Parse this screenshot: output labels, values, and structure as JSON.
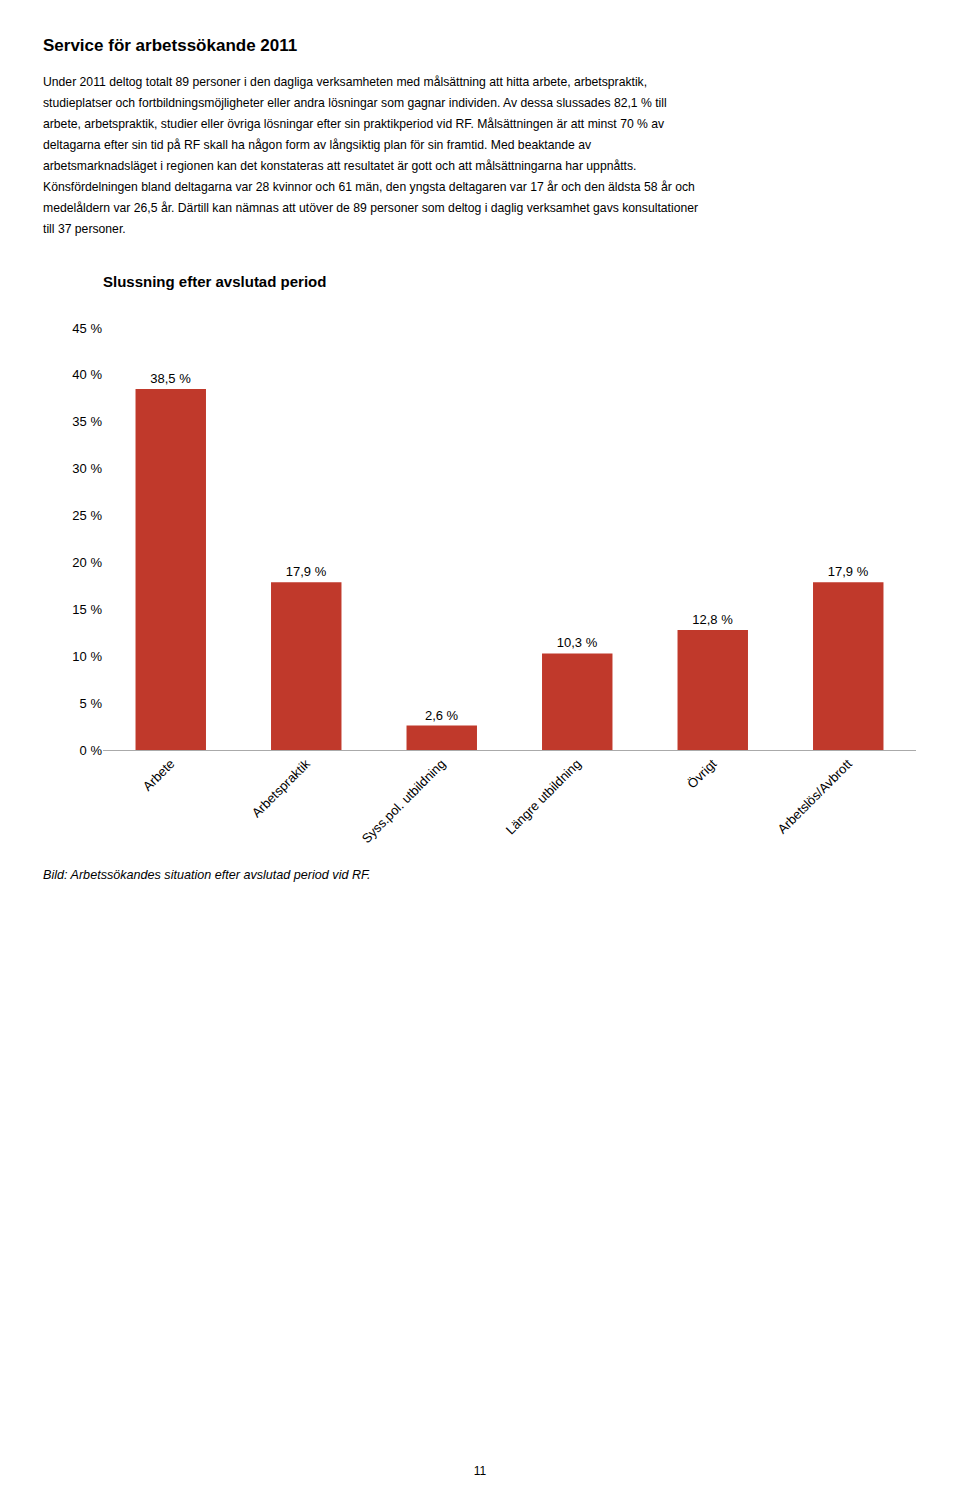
{
  "page_title": "Service för arbetssökande 2011",
  "body_lines": [
    "Under 2011 deltog totalt 89 personer i den dagliga verksamheten med målsättning att hitta arbete, arbetspraktik,",
    "studieplatser och fortbildningsmöjligheter eller andra lösningar som gagnar individen. Av dessa slussades 82,1 % till",
    "arbete, arbetspraktik, studier eller övriga lösningar efter sin praktikperiod vid RF. Målsättningen är att minst 70 % av",
    "deltagarna efter sin tid på RF skall ha någon form av långsiktig plan för sin framtid. Med beaktande av",
    "arbetsmarknadsläget i regionen kan det konstateras att resultatet är gott och att målsättningarna har uppnåtts.",
    "Könsfördelningen bland deltagarna var 28 kvinnor och 61 män, den yngsta deltagaren var 17 år och den äldsta 58 år och",
    "medelåldern var 26,5 år. Därtill kan nämnas att utöver de 89 personer som deltog i daglig verksamhet gavs konsultationer",
    "till 37 personer."
  ],
  "caption": "Bild: Arbetssökandes situation efter avslutad period vid RF.",
  "page_num": "11",
  "chart_data": {
    "type": "bar",
    "title": "Slussning efter avslutad period",
    "categories": [
      "Arbete",
      "Arbetspraktik",
      "Syss.pol. utbildning",
      "Längre utbildning",
      "Övrigt",
      "Arbetslös/Avbrott"
    ],
    "values": [
      38.5,
      17.9,
      2.6,
      10.3,
      12.8,
      17.9
    ],
    "value_labels": [
      "38,5 %",
      "17,9 %",
      "2,6 %",
      "10,3 %",
      "12,8 %",
      "17,9 %"
    ],
    "data_labels": true,
    "color": "#c0392b",
    "ylim": [
      0,
      45
    ],
    "yticks": [
      {
        "value": 0,
        "label": "0 %"
      },
      {
        "value": 5,
        "label": "5 %"
      },
      {
        "value": 10,
        "label": "10 %"
      },
      {
        "value": 15,
        "label": "15 %"
      },
      {
        "value": 20,
        "label": "20 %"
      },
      {
        "value": 25,
        "label": "25 %"
      },
      {
        "value": 30,
        "label": "30 %"
      },
      {
        "value": 35,
        "label": "35 %"
      },
      {
        "value": 40,
        "label": "40 %"
      },
      {
        "value": 45,
        "label": "45 %"
      }
    ],
    "grid": false
  }
}
